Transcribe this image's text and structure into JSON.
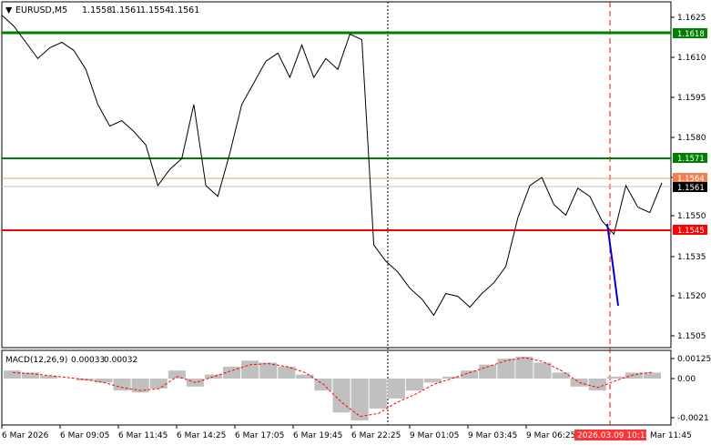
{
  "header": {
    "symbol": "EURUSD,M5",
    "open": "1.1558",
    "high": "1.1561",
    "low": "1.1554",
    "close": "1.1561"
  },
  "macd": {
    "label": "MACD(12,26,9)",
    "value_main": "0.00033",
    "value_signal": "0.00032",
    "ticks": [
      "0.00125",
      "0.00",
      "-0.0021"
    ],
    "colors": {
      "histogram": "#c0c0c0",
      "signal": "#ff0000"
    }
  },
  "price_axis": {
    "ticks": [
      "1.1625",
      "1.1610",
      "1.1595",
      "1.1580",
      "1.1565",
      "1.1550",
      "1.1535",
      "1.1520",
      "1.1505"
    ]
  },
  "levels": [
    {
      "label": "1.1618",
      "color": "#008000"
    },
    {
      "label": "1.1571",
      "color": "#008000"
    },
    {
      "label": "1.1545",
      "color": "#ff0000"
    }
  ],
  "bid_label": "1.1564",
  "current_price_label": "1.1561",
  "time_axis": {
    "ticks": [
      "6 Mar 2026",
      "6 Mar 09:05",
      "6 Mar 11:45",
      "6 Mar 14:25",
      "6 Mar 17:05",
      "6 Mar 19:45",
      "6 Mar 22:25",
      "9 Mar 01:05",
      "9 Mar 03:45",
      "9 Mar 06:25",
      "2026.03.09 10:15",
      "Mar 11:45"
    ],
    "highlight": "2026.03.09 10:15"
  },
  "chart_data": {
    "type": "line",
    "title": "EURUSD,M5",
    "ylim": [
      1.15,
      1.1628
    ],
    "series": [
      {
        "name": "EURUSD,M5",
        "x": [
          "6 Mar 2026",
          "",
          "",
          "",
          "",
          "6 Mar 09:05",
          "",
          "",
          "",
          "",
          "6 Mar 11:45",
          "",
          "",
          "",
          "",
          "6 Mar 14:25",
          "",
          "",
          "",
          "",
          "6 Mar 17:05",
          "",
          "",
          "",
          "",
          "6 Mar 19:45",
          "",
          "",
          "",
          "",
          "6 Mar 22:25",
          "",
          "",
          "",
          "",
          "9 Mar 01:05",
          "",
          "",
          "",
          "",
          "9 Mar 03:45",
          "",
          "",
          "",
          "",
          "9 Mar 06:25",
          "",
          "",
          "",
          "",
          "2026.03.09 10:15",
          "",
          "",
          "Mar 11:45",
          "",
          ""
        ],
        "values": [
          1.1623,
          1.1619,
          1.1613,
          1.1607,
          1.1611,
          1.1613,
          1.161,
          1.1603,
          1.159,
          1.1582,
          1.1584,
          1.158,
          1.1575,
          1.156,
          1.1566,
          1.157,
          1.159,
          1.156,
          1.1556,
          1.1572,
          1.159,
          1.1598,
          1.1606,
          1.1609,
          1.16,
          1.1612,
          1.16,
          1.1607,
          1.1603,
          1.1616,
          1.1614,
          1.1538,
          1.1532,
          1.1528,
          1.1522,
          1.1518,
          1.1512,
          1.152,
          1.1519,
          1.1515,
          1.152,
          1.1524,
          1.153,
          1.1548,
          1.156,
          1.1563,
          1.1553,
          1.1549,
          1.1559,
          1.1556,
          1.1547,
          1.1542,
          1.156,
          1.1552,
          1.155,
          1.1561
        ]
      }
    ],
    "macd": {
      "histogram": [
        0.0004,
        0.0003,
        0.00015,
        0.0,
        -0.0001,
        -0.0002,
        -0.0006,
        -0.0007,
        -0.0005,
        0.0004,
        -0.0004,
        0.0002,
        0.0006,
        0.0009,
        0.0008,
        0.0006,
        0.0002,
        -0.0006,
        -0.0017,
        -0.0021,
        -0.0015,
        -0.001,
        -0.0006,
        -0.0002,
        0.0001,
        0.0004,
        0.0007,
        0.001,
        0.0011,
        0.0008,
        0.0003,
        -0.0004,
        -0.0006,
        0.0001,
        0.0003,
        0.0003
      ],
      "signal": [
        0.0003,
        0.00025,
        0.00015,
        5e-05,
        -5e-05,
        -0.0002,
        -0.00045,
        -0.0006,
        -0.0005,
        0.0001,
        -0.0002,
        0.0001,
        0.0004,
        0.0007,
        0.00075,
        0.0006,
        0.0003,
        -0.0003,
        -0.0012,
        -0.0019,
        -0.00175,
        -0.0012,
        -0.0008,
        -0.0003,
        0.0,
        0.0003,
        0.0006,
        0.0009,
        0.00105,
        0.00085,
        0.0004,
        -0.0002,
        -0.00045,
        -0.0001,
        0.0002,
        0.00032
      ]
    },
    "horizontal_levels": [
      1.1618,
      1.1571,
      1.1545
    ],
    "grid": false
  }
}
